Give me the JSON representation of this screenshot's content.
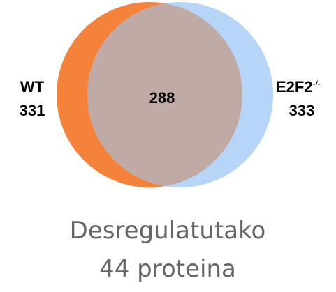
{
  "sets": [
    {
      "label": "WT",
      "count": "331"
    },
    {
      "label": "E2F2",
      "label_superscript": "-/-",
      "count": "333"
    }
  ],
  "intersection": {
    "count": "288"
  },
  "caption": [
    "Desregulatutako",
    "44 proteina"
  ]
}
